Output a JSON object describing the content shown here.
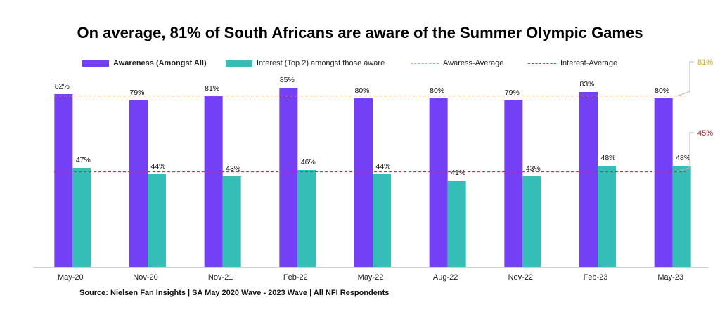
{
  "title": "On average, 81% of South Africans are aware of the Summer Olympic Games",
  "source": "Source: Nielsen Fan Insights | SA May 2020 Wave - 2023 Wave | All NFI Respondents",
  "legend": {
    "awareness": "Awareness (Amongst All)",
    "interest": "Interest (Top 2) amongst those aware",
    "awareness_avg": "Awaress-Average",
    "interest_avg": "Interest-Average"
  },
  "colors": {
    "awareness": "#7340f5",
    "interest": "#35bdb8",
    "awareness_avg": "#f0a830",
    "interest_avg": "#e8204a",
    "interest_avg_label": "#c0181c",
    "awareness_avg_label": "#e8a020"
  },
  "chart_data": {
    "type": "bar",
    "categories": [
      "May-20",
      "Nov-20",
      "Nov-21",
      "Feb-22",
      "May-22",
      "Aug-22",
      "Nov-22",
      "Feb-23",
      "May-23"
    ],
    "series": [
      {
        "name": "Awareness (Amongst All)",
        "values": [
          82,
          79,
          81,
          85,
          80,
          80,
          79,
          83,
          80
        ],
        "labels": [
          "82%",
          "79%",
          "81%",
          "85%",
          "80%",
          "80%",
          "79%",
          "83%",
          "80%"
        ]
      },
      {
        "name": "Interest (Top 2) amongst those aware",
        "values": [
          47,
          44,
          43,
          46,
          44,
          41,
          43,
          48,
          48
        ],
        "labels": [
          "47%",
          "44%",
          "43%",
          "46%",
          "44%",
          "41%",
          "43%",
          "48%",
          "48%"
        ]
      }
    ],
    "reference_lines": [
      {
        "name": "Awaress-Average",
        "value": 81,
        "label": "81%"
      },
      {
        "name": "Interest-Average",
        "value": 45,
        "label": "45%"
      }
    ],
    "ylim": [
      0,
      100
    ],
    "grid": false,
    "legend_position": "top"
  }
}
